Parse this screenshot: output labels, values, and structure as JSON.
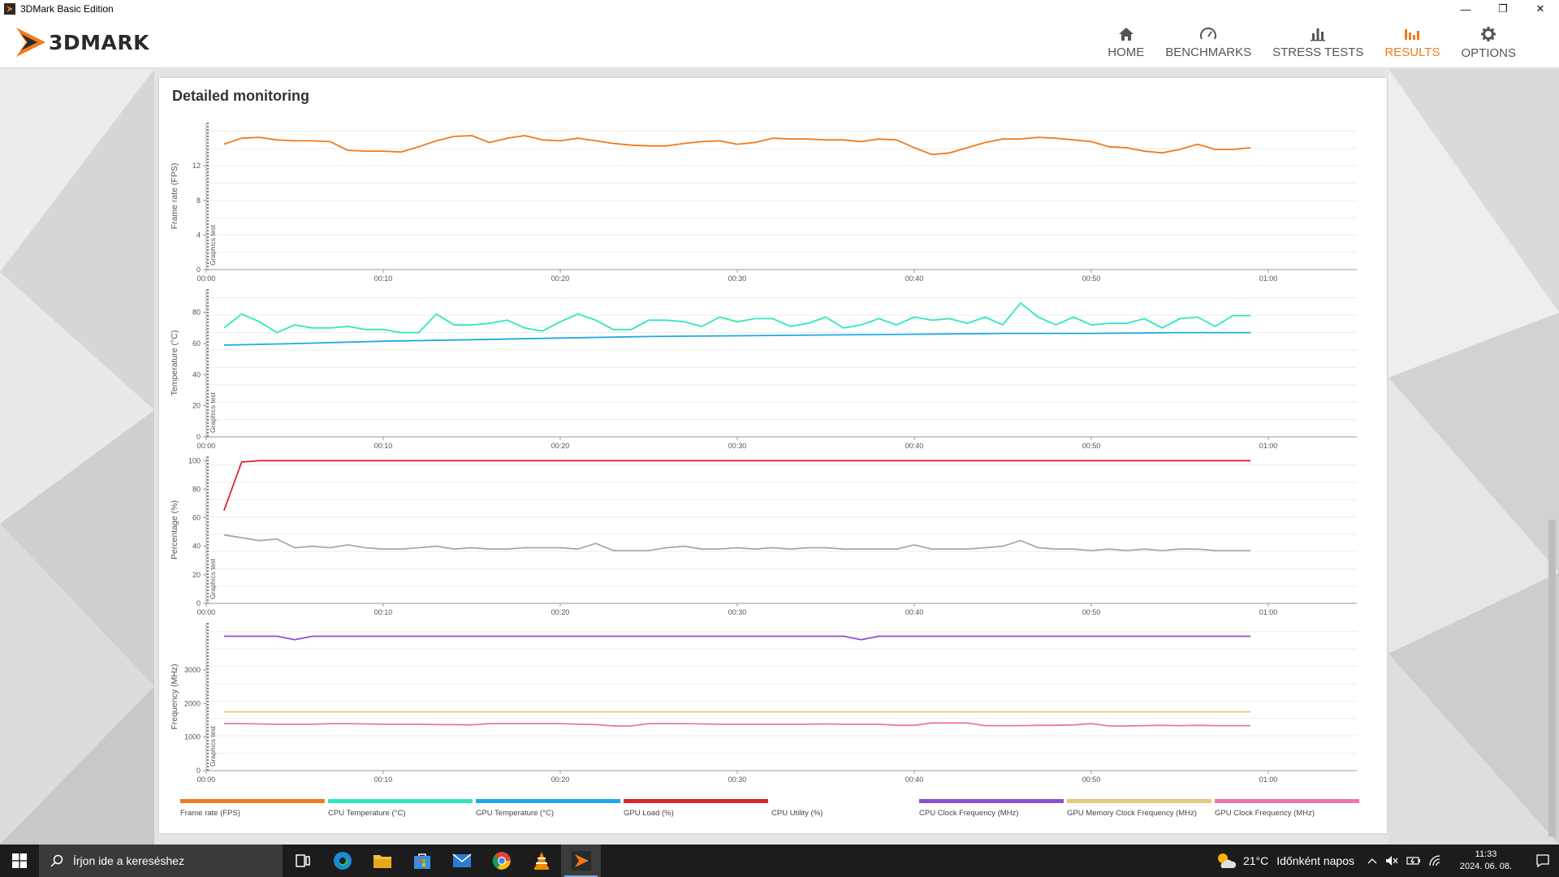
{
  "window": {
    "title": "3DMark Basic Edition",
    "minimize": "—",
    "restore": "❐",
    "close": "✕"
  },
  "brand": {
    "logo_text": "3DMARK",
    "accent": "#f07a1c"
  },
  "nav": [
    {
      "label": "HOME",
      "icon": "home-icon",
      "active": false
    },
    {
      "label": "BENCHMARKS",
      "icon": "speedometer-icon",
      "active": false
    },
    {
      "label": "STRESS TESTS",
      "icon": "bar-chart-icon",
      "active": false
    },
    {
      "label": "RESULTS",
      "icon": "results-icon",
      "active": true
    },
    {
      "label": "OPTIONS",
      "icon": "gear-icon",
      "active": false
    }
  ],
  "panel": {
    "title": "Detailed monitoring"
  },
  "chart_data": [
    {
      "type": "line",
      "ylabel": "Frame rate (FPS)",
      "section_label": "Graphics test",
      "yticks": [
        "0",
        "4",
        "8",
        "12"
      ],
      "ylim": [
        0,
        17
      ],
      "xticks": [
        "00:00",
        "00:10",
        "00:20",
        "00:30",
        "00:40",
        "00:50",
        "01:00"
      ],
      "xlim": [
        0,
        65
      ],
      "grid": true,
      "series": [
        {
          "name": "Frame rate (FPS)",
          "color": "#f07a1c",
          "x": [
            1,
            2,
            3,
            4,
            5,
            6,
            7,
            8,
            9,
            10,
            11,
            12,
            13,
            14,
            15,
            16,
            17,
            18,
            19,
            20,
            21,
            22,
            23,
            24,
            25,
            26,
            27,
            28,
            29,
            30,
            31,
            32,
            33,
            34,
            35,
            36,
            37,
            38,
            39,
            40,
            41,
            42,
            43,
            44,
            45,
            46,
            47,
            48,
            49,
            50,
            51,
            52,
            53,
            54,
            55,
            56,
            57,
            58,
            59
          ],
          "y": [
            14.5,
            15.2,
            15.3,
            15.0,
            14.9,
            14.9,
            14.8,
            13.8,
            13.7,
            13.7,
            13.6,
            14.2,
            14.9,
            15.4,
            15.5,
            14.7,
            15.2,
            15.5,
            15.0,
            14.9,
            15.2,
            14.9,
            14.6,
            14.4,
            14.3,
            14.3,
            14.6,
            14.8,
            14.9,
            14.5,
            14.7,
            15.2,
            15.1,
            15.1,
            15.0,
            15.0,
            14.8,
            15.1,
            15.0,
            14.1,
            13.3,
            13.5,
            14.1,
            14.7,
            15.1,
            15.1,
            15.3,
            15.2,
            15.0,
            14.8,
            14.2,
            14.1,
            13.7,
            13.5,
            13.9,
            14.5,
            13.9,
            13.9,
            14.1
          ]
        }
      ]
    },
    {
      "type": "line",
      "ylabel": "Temperature (°C)",
      "section_label": "Graphics test",
      "yticks": [
        "0",
        "20",
        "40",
        "60",
        "80"
      ],
      "ylim": [
        0,
        95
      ],
      "xticks": [
        "00:00",
        "00:10",
        "00:20",
        "00:30",
        "00:40",
        "00:50",
        "01:00"
      ],
      "xlim": [
        0,
        65
      ],
      "grid": true,
      "series": [
        {
          "name": "CPU Temperature (°C)",
          "color": "#2ee8bd",
          "x": [
            1,
            2,
            3,
            4,
            5,
            6,
            7,
            8,
            9,
            10,
            11,
            12,
            13,
            14,
            15,
            16,
            17,
            18,
            19,
            20,
            21,
            22,
            23,
            24,
            25,
            26,
            27,
            28,
            29,
            30,
            31,
            32,
            33,
            34,
            35,
            36,
            37,
            38,
            39,
            40,
            41,
            42,
            43,
            44,
            45,
            46,
            47,
            48,
            49,
            50,
            51,
            52,
            53,
            54,
            55,
            56,
            57,
            58,
            59
          ],
          "y": [
            70,
            79,
            74,
            67,
            72,
            70,
            70,
            71,
            69,
            69,
            67,
            67,
            79,
            72,
            72,
            73,
            75,
            70,
            68,
            74,
            79,
            75,
            69,
            69,
            75,
            75,
            74,
            71,
            77,
            74,
            76,
            76,
            71,
            73,
            77,
            70,
            72,
            76,
            72,
            77,
            75,
            76,
            73,
            77,
            72,
            86,
            77,
            72,
            77,
            72,
            73,
            73,
            76,
            70,
            76,
            77,
            71,
            78,
            78
          ]
        },
        {
          "name": "GPU Temperature (°C)",
          "color": "#1fa8e8",
          "x": [
            1,
            5,
            10,
            15,
            20,
            25,
            30,
            35,
            40,
            45,
            50,
            55,
            59
          ],
          "y": [
            59,
            60,
            61.5,
            62.5,
            63.5,
            64.5,
            65,
            65.5,
            66,
            66.5,
            66.5,
            67,
            67
          ]
        }
      ]
    },
    {
      "type": "line",
      "ylabel": "Percentage (%)",
      "section_label": "Graphics test",
      "yticks": [
        "0",
        "20",
        "40",
        "60",
        "80",
        "100"
      ],
      "ylim": [
        0,
        103
      ],
      "xticks": [
        "00:00",
        "00:10",
        "00:20",
        "00:30",
        "00:40",
        "00:50",
        "01:00"
      ],
      "xlim": [
        0,
        65
      ],
      "grid": true,
      "series": [
        {
          "name": "GPU Load (%)",
          "color": "#d8272b",
          "x": [
            1,
            2,
            3,
            59
          ],
          "y": [
            65,
            99,
            100,
            100
          ]
        },
        {
          "name": "CPU Utility (%)",
          "color": "#a9a9a9",
          "x": [
            1,
            2,
            3,
            4,
            5,
            6,
            7,
            8,
            9,
            10,
            11,
            12,
            13,
            14,
            15,
            16,
            17,
            18,
            19,
            20,
            21,
            22,
            23,
            24,
            25,
            26,
            27,
            28,
            29,
            30,
            31,
            32,
            33,
            34,
            35,
            36,
            37,
            38,
            39,
            40,
            41,
            42,
            43,
            44,
            45,
            46,
            47,
            48,
            49,
            50,
            51,
            52,
            53,
            54,
            55,
            56,
            57,
            58,
            59
          ],
          "y": [
            48,
            46,
            44,
            45,
            39,
            40,
            39,
            41,
            39,
            38,
            38,
            39,
            40,
            38,
            39,
            38,
            38,
            39,
            39,
            39,
            38,
            42,
            37,
            37,
            37,
            39,
            40,
            38,
            38,
            39,
            38,
            39,
            38,
            39,
            39,
            38,
            38,
            38,
            38,
            41,
            38,
            38,
            38,
            39,
            40,
            44,
            39,
            38,
            38,
            37,
            38,
            37,
            38,
            37,
            38,
            38,
            37,
            37,
            37
          ]
        }
      ]
    },
    {
      "type": "line",
      "ylabel": "Frequency (MHz)",
      "section_label": "Graphics test",
      "yticks": [
        "0",
        "1000",
        "2000",
        "3000"
      ],
      "ylim": [
        0,
        4400
      ],
      "xticks": [
        "00:00",
        "00:10",
        "00:20",
        "00:30",
        "00:40",
        "00:50",
        "01:00"
      ],
      "xlim": [
        0,
        65
      ],
      "grid": true,
      "series": [
        {
          "name": "CPU Clock Frequency (MHz)",
          "color": "#8a4fd3",
          "x": [
            1,
            2,
            3,
            4,
            5,
            6,
            7,
            8,
            10,
            15,
            20,
            25,
            30,
            35,
            36,
            37,
            38,
            39,
            40,
            45,
            50,
            55,
            59
          ],
          "y": [
            4000,
            4000,
            4000,
            4000,
            3900,
            4000,
            4000,
            4000,
            4000,
            4000,
            4000,
            4000,
            4000,
            4000,
            4000,
            3900,
            4000,
            4000,
            4000,
            4000,
            4000,
            4000,
            4000
          ]
        },
        {
          "name": "GPU Memory Clock Frequency (MHz)",
          "color": "#e8c77e",
          "x": [
            1,
            59
          ],
          "y": [
            1750,
            1750
          ]
        },
        {
          "name": "GPU Clock Frequency (MHz)",
          "color": "#ef74ab",
          "x": [
            1,
            2,
            3,
            4,
            5,
            6,
            7,
            8,
            9,
            10,
            11,
            12,
            13,
            14,
            15,
            16,
            17,
            18,
            19,
            20,
            21,
            22,
            23,
            24,
            25,
            26,
            27,
            28,
            29,
            30,
            31,
            32,
            33,
            34,
            35,
            36,
            37,
            38,
            39,
            40,
            41,
            42,
            43,
            44,
            45,
            46,
            47,
            48,
            49,
            50,
            51,
            52,
            53,
            54,
            55,
            56,
            57,
            58,
            59
          ],
          "y": [
            1400,
            1400,
            1390,
            1380,
            1380,
            1380,
            1400,
            1400,
            1390,
            1380,
            1380,
            1380,
            1370,
            1370,
            1360,
            1400,
            1400,
            1400,
            1400,
            1400,
            1380,
            1370,
            1330,
            1330,
            1400,
            1400,
            1400,
            1390,
            1380,
            1380,
            1380,
            1380,
            1380,
            1380,
            1390,
            1380,
            1380,
            1380,
            1350,
            1350,
            1420,
            1420,
            1420,
            1340,
            1340,
            1340,
            1350,
            1350,
            1360,
            1400,
            1330,
            1330,
            1340,
            1350,
            1340,
            1350,
            1340,
            1340,
            1340
          ]
        }
      ]
    }
  ],
  "legend": [
    {
      "label": "Frame rate (FPS)",
      "color": "#f07a1c"
    },
    {
      "label": "CPU Temperature (°C)",
      "color": "#2ee8bd"
    },
    {
      "label": "GPU Temperature (°C)",
      "color": "#1fa8e8"
    },
    {
      "label": "GPU Load (%)",
      "color": "#d8272b"
    },
    {
      "label": "CPU Utility (%)",
      "color": "#ffffff"
    },
    {
      "label": "CPU Clock Frequency (MHz)",
      "color": "#8a4fd3"
    },
    {
      "label": "GPU Memory Clock Frequency (MHz)",
      "color": "#e8c77e"
    },
    {
      "label": "GPU Clock Frequency (MHz)",
      "color": "#ef74ab"
    }
  ],
  "taskbar": {
    "search_placeholder": "Írjon ide a kereséshez",
    "apps": [
      "task-view-icon",
      "edge-icon",
      "file-explorer-icon",
      "store-icon",
      "mail-icon",
      "chrome-icon",
      "vlc-icon",
      "3dmark-icon"
    ],
    "weather_temp": "21°C",
    "weather_text": "Időnként napos",
    "time": "11:33",
    "date": "2024. 06. 08."
  }
}
